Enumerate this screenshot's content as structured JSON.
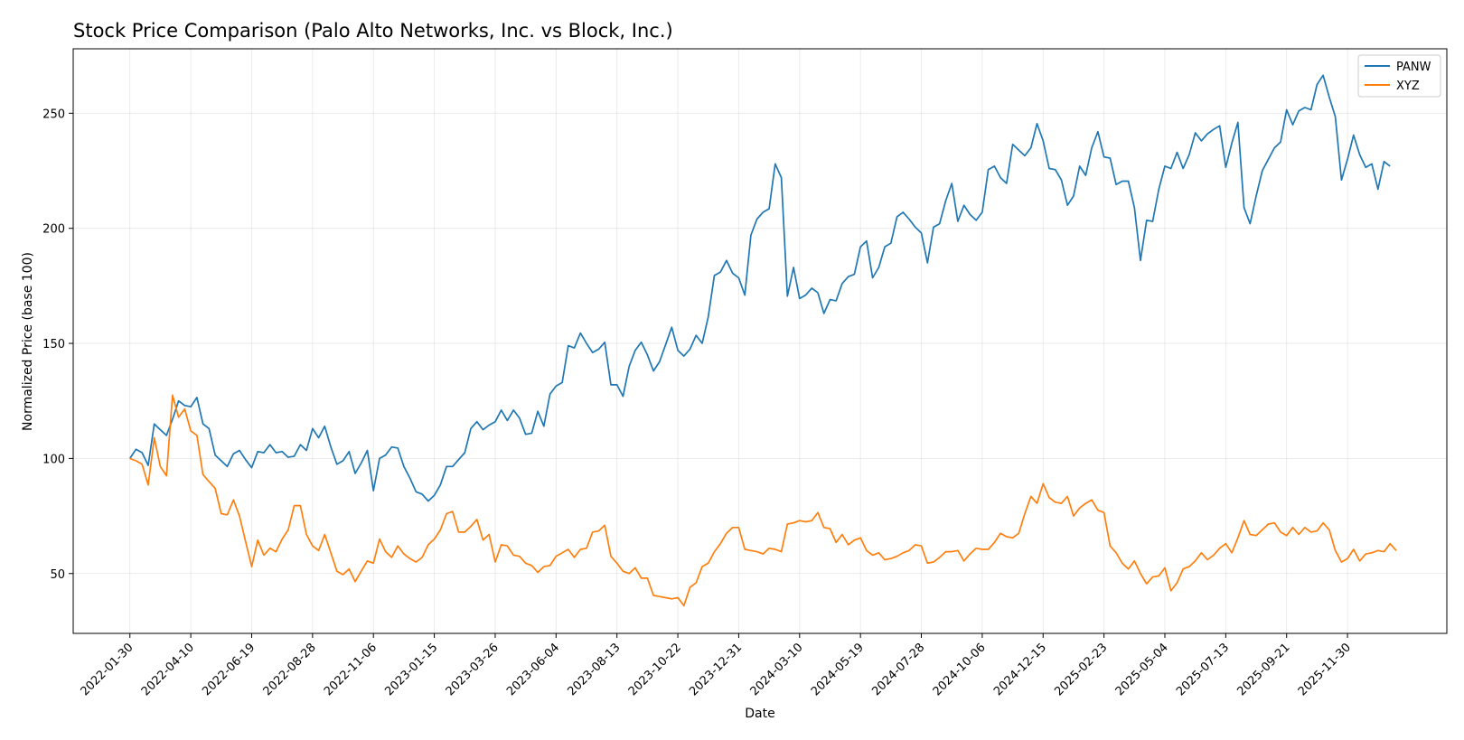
{
  "chart_data": {
    "type": "line",
    "title": "Stock Price Comparison (Palo Alto Networks, Inc. vs Block, Inc.)",
    "xlabel": "Date",
    "ylabel": "Normalized Price (base 100)",
    "ylim": [
      24,
      278
    ],
    "y_ticks": [
      50,
      100,
      150,
      200,
      250
    ],
    "x_ticks": [
      "2022-01-30",
      "2022-04-10",
      "2022-06-19",
      "2022-08-28",
      "2022-11-06",
      "2023-01-15",
      "2023-03-26",
      "2023-06-04",
      "2023-08-13",
      "2023-10-22",
      "2023-12-31",
      "2024-03-10",
      "2024-05-19",
      "2024-07-28",
      "2024-10-06",
      "2024-12-15",
      "2025-02-23",
      "2025-05-04",
      "2025-07-13",
      "2025-09-21",
      "2025-11-30"
    ],
    "x_start": "2022-01-30",
    "x_interval_weeks": 1,
    "grid": true,
    "legend_position": "top-right",
    "series": [
      {
        "name": "PANW",
        "color": "#1f77b4",
        "values": [
          100,
          104,
          102.5,
          97,
          115,
          112.5,
          110,
          117,
          125,
          123,
          122.5,
          126.5,
          115,
          113,
          101.5,
          99,
          96.5,
          102,
          103.5,
          99.5,
          96,
          103,
          102.5,
          106,
          102.5,
          103,
          100.5,
          101,
          106,
          103.5,
          113,
          109,
          114,
          105,
          97.5,
          99,
          103,
          93.5,
          98,
          103.5,
          86,
          100,
          101.5,
          105,
          104.5,
          96.5,
          91.5,
          85.5,
          84.5,
          81.5,
          84,
          88.5,
          96.5,
          96.5,
          99.5,
          102.5,
          113,
          116,
          112.5,
          114.5,
          116,
          121,
          116.5,
          121,
          117.5,
          110.5,
          111,
          120.5,
          114,
          128,
          131.5,
          133,
          149,
          148,
          154.5,
          150,
          146,
          147.5,
          150.5,
          132,
          132,
          127,
          140,
          147,
          150.5,
          145,
          138,
          142,
          149.5,
          157,
          147,
          144.5,
          147.5,
          153.5,
          150,
          161.5,
          179.5,
          181,
          186,
          180.5,
          178.5,
          171,
          197,
          204,
          207,
          208.5,
          228,
          222,
          170.5,
          183,
          169.5,
          171,
          174,
          172,
          163,
          169,
          168.5,
          176,
          179,
          180,
          192,
          194.5,
          178.5,
          183,
          192,
          193.5,
          205,
          207,
          204,
          200.5,
          198,
          185,
          200.5,
          202,
          212,
          219.5,
          203,
          210,
          206,
          203.5,
          207,
          225.5,
          227,
          222,
          219.5,
          236.5,
          234,
          231.5,
          235,
          245.5,
          238,
          226,
          225.5,
          221,
          210,
          214,
          227,
          223,
          235,
          242,
          231,
          230.5,
          219,
          220.5,
          220.5,
          209,
          186,
          203.5,
          203,
          217,
          227,
          226,
          233,
          226,
          232,
          241.5,
          238,
          241,
          243,
          244.5,
          226.5,
          237,
          246,
          209,
          202,
          214,
          225,
          230,
          235,
          237.5,
          251.5,
          245,
          251,
          252.5,
          251.5,
          262.5,
          266.5,
          257,
          248.5,
          221,
          230,
          240.5,
          232,
          226.5,
          228,
          217,
          229,
          227
        ]
      },
      {
        "name": "XYZ",
        "color": "#ff7f0e",
        "values": [
          100,
          99,
          97.5,
          88.5,
          109,
          96.5,
          92.5,
          127.5,
          118,
          121.5,
          112,
          110,
          93,
          90,
          87,
          76,
          75.5,
          82,
          75,
          64,
          53,
          64.5,
          58,
          61,
          59.5,
          65,
          69,
          79.5,
          79.5,
          67,
          62,
          60,
          67,
          59,
          51,
          49.5,
          52,
          46.5,
          51,
          55.5,
          54.5,
          65,
          59.5,
          57,
          62,
          58.5,
          56.5,
          55,
          57,
          62.5,
          65,
          69,
          76,
          77,
          68,
          68,
          70.5,
          73.5,
          64.5,
          67,
          55,
          62.5,
          62,
          58,
          57.5,
          54.5,
          53.5,
          50.5,
          53,
          53.5,
          57.5,
          59,
          60.5,
          57,
          60.5,
          61,
          68,
          68.5,
          71,
          57.5,
          54.5,
          51,
          50,
          52.5,
          48,
          48,
          40.5,
          40,
          39.5,
          39,
          39.5,
          36,
          44,
          46,
          53,
          54.5,
          59.5,
          63,
          67.5,
          70,
          70,
          60.5,
          60,
          59.5,
          58.5,
          61,
          60.5,
          59.5,
          71.5,
          72,
          73,
          72.5,
          73,
          76.5,
          70,
          69.5,
          63.5,
          67,
          62.5,
          64.5,
          65.5,
          60,
          58,
          59,
          56,
          56.5,
          57.5,
          59,
          60,
          62.5,
          62,
          54.5,
          55,
          57,
          59.5,
          59.5,
          60,
          55.5,
          58.5,
          61,
          60.5,
          60.5,
          63.5,
          67.5,
          66,
          65.5,
          67.5,
          76,
          83.5,
          80.5,
          89,
          83,
          81,
          80.5,
          83.5,
          75,
          78.5,
          80.5,
          82,
          77.5,
          76.5,
          62,
          59,
          54.5,
          52,
          55.5,
          50,
          45.5,
          48.5,
          49,
          52.5,
          42.5,
          46,
          52,
          53,
          55.5,
          59,
          56,
          58,
          61,
          63,
          59,
          65.5,
          73,
          67,
          66.5,
          69,
          71.5,
          72,
          68,
          66.5,
          70,
          67,
          70,
          68,
          68.5,
          72,
          69,
          60,
          55,
          56.5,
          60.5,
          55.5,
          58.5,
          59,
          60,
          59.5,
          63,
          60
        ]
      }
    ]
  }
}
